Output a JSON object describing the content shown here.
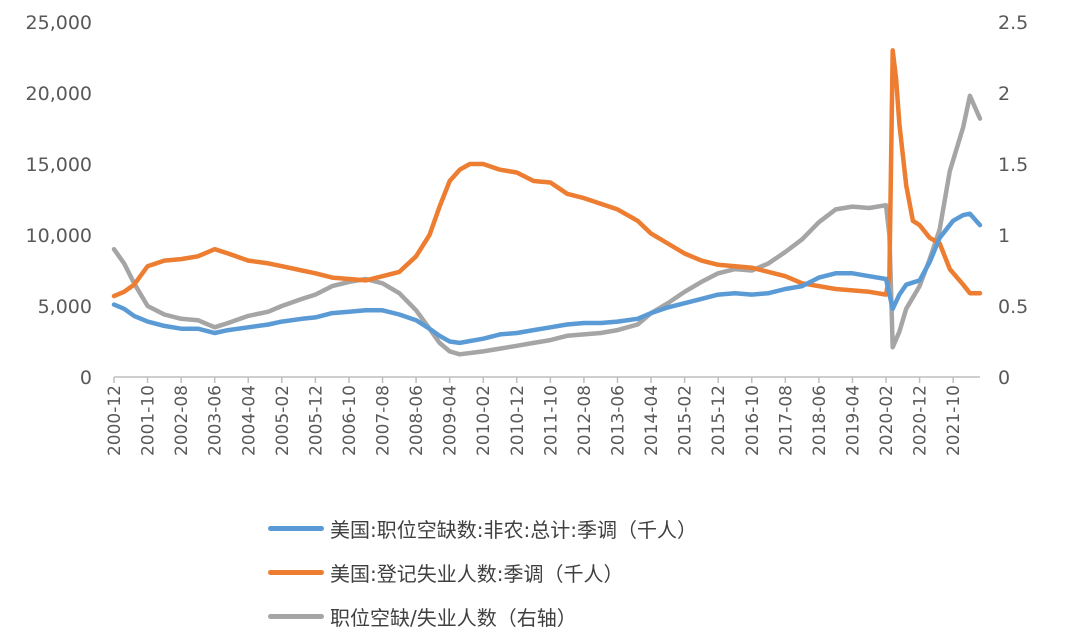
{
  "chart_data": {
    "type": "line",
    "y_left": {
      "ticks": [
        "0",
        "5,000",
        "10,000",
        "15,000",
        "20,000",
        "25,000"
      ],
      "range": [
        0,
        25000
      ]
    },
    "y_right": {
      "ticks": [
        "0",
        "0.5",
        "1",
        "1.5",
        "2",
        "2.5"
      ],
      "range": [
        0,
        2.5
      ]
    },
    "x_ticks": [
      "2000-12",
      "2001-10",
      "2002-08",
      "2003-06",
      "2004-04",
      "2005-02",
      "2005-12",
      "2006-10",
      "2007-08",
      "2008-06",
      "2009-04",
      "2010-02",
      "2010-12",
      "2011-10",
      "2012-08",
      "2013-06",
      "2014-04",
      "2015-02",
      "2015-12",
      "2016-10",
      "2017-08",
      "2018-06",
      "2019-04",
      "2020-02",
      "2020-12",
      "2021-10"
    ],
    "x_range": [
      "2000-12",
      "2022-06"
    ],
    "grid": false,
    "legend_position": "bottom",
    "series": [
      {
        "name": "美国:职位空缺数:非农:总计:季调（千人）",
        "axis": "left",
        "color": "#5B9BD5",
        "points": [
          [
            "2000-12",
            5100
          ],
          [
            "2001-03",
            4800
          ],
          [
            "2001-06",
            4300
          ],
          [
            "2001-10",
            3900
          ],
          [
            "2002-03",
            3600
          ],
          [
            "2002-08",
            3400
          ],
          [
            "2003-01",
            3400
          ],
          [
            "2003-06",
            3100
          ],
          [
            "2003-10",
            3300
          ],
          [
            "2004-04",
            3500
          ],
          [
            "2004-10",
            3700
          ],
          [
            "2005-02",
            3900
          ],
          [
            "2005-08",
            4100
          ],
          [
            "2005-12",
            4200
          ],
          [
            "2006-05",
            4500
          ],
          [
            "2006-10",
            4600
          ],
          [
            "2007-03",
            4700
          ],
          [
            "2007-08",
            4700
          ],
          [
            "2008-01",
            4400
          ],
          [
            "2008-06",
            4000
          ],
          [
            "2008-10",
            3400
          ],
          [
            "2009-01",
            2900
          ],
          [
            "2009-04",
            2500
          ],
          [
            "2009-07",
            2400
          ],
          [
            "2010-02",
            2700
          ],
          [
            "2010-07",
            3000
          ],
          [
            "2010-12",
            3100
          ],
          [
            "2011-05",
            3300
          ],
          [
            "2011-10",
            3500
          ],
          [
            "2012-03",
            3700
          ],
          [
            "2012-08",
            3800
          ],
          [
            "2013-01",
            3800
          ],
          [
            "2013-06",
            3900
          ],
          [
            "2013-12",
            4100
          ],
          [
            "2014-04",
            4500
          ],
          [
            "2014-09",
            4900
          ],
          [
            "2015-02",
            5200
          ],
          [
            "2015-07",
            5500
          ],
          [
            "2015-12",
            5800
          ],
          [
            "2016-05",
            5900
          ],
          [
            "2016-10",
            5800
          ],
          [
            "2017-03",
            5900
          ],
          [
            "2017-08",
            6200
          ],
          [
            "2018-01",
            6400
          ],
          [
            "2018-06",
            7000
          ],
          [
            "2018-11",
            7300
          ],
          [
            "2019-04",
            7300
          ],
          [
            "2019-09",
            7100
          ],
          [
            "2020-02",
            6900
          ],
          [
            "2020-04",
            4800
          ],
          [
            "2020-06",
            5800
          ],
          [
            "2020-08",
            6500
          ],
          [
            "2020-12",
            6800
          ],
          [
            "2021-03",
            8100
          ],
          [
            "2021-06",
            9800
          ],
          [
            "2021-10",
            11000
          ],
          [
            "2022-01",
            11400
          ],
          [
            "2022-03",
            11500
          ],
          [
            "2022-06",
            10700
          ]
        ]
      },
      {
        "name": "美国:登记失业人数:季调（千人）",
        "axis": "left",
        "color": "#ED7D31",
        "points": [
          [
            "2000-12",
            5700
          ],
          [
            "2001-03",
            6000
          ],
          [
            "2001-06",
            6500
          ],
          [
            "2001-10",
            7800
          ],
          [
            "2002-03",
            8200
          ],
          [
            "2002-08",
            8300
          ],
          [
            "2003-01",
            8500
          ],
          [
            "2003-06",
            9000
          ],
          [
            "2003-10",
            8700
          ],
          [
            "2004-04",
            8200
          ],
          [
            "2004-10",
            8000
          ],
          [
            "2005-02",
            7800
          ],
          [
            "2005-08",
            7500
          ],
          [
            "2005-12",
            7300
          ],
          [
            "2006-05",
            7000
          ],
          [
            "2006-10",
            6900
          ],
          [
            "2007-03",
            6800
          ],
          [
            "2007-08",
            7100
          ],
          [
            "2008-01",
            7400
          ],
          [
            "2008-06",
            8500
          ],
          [
            "2008-10",
            10000
          ],
          [
            "2009-01",
            12000
          ],
          [
            "2009-04",
            13800
          ],
          [
            "2009-07",
            14600
          ],
          [
            "2009-10",
            15000
          ],
          [
            "2010-02",
            15000
          ],
          [
            "2010-07",
            14600
          ],
          [
            "2010-12",
            14400
          ],
          [
            "2011-05",
            13800
          ],
          [
            "2011-10",
            13700
          ],
          [
            "2012-03",
            12900
          ],
          [
            "2012-08",
            12600
          ],
          [
            "2013-01",
            12200
          ],
          [
            "2013-06",
            11800
          ],
          [
            "2013-12",
            11000
          ],
          [
            "2014-04",
            10100
          ],
          [
            "2014-09",
            9400
          ],
          [
            "2015-02",
            8700
          ],
          [
            "2015-07",
            8200
          ],
          [
            "2015-12",
            7900
          ],
          [
            "2016-05",
            7800
          ],
          [
            "2016-10",
            7700
          ],
          [
            "2017-03",
            7400
          ],
          [
            "2017-08",
            7100
          ],
          [
            "2018-01",
            6600
          ],
          [
            "2018-06",
            6400
          ],
          [
            "2018-11",
            6200
          ],
          [
            "2019-04",
            6100
          ],
          [
            "2019-09",
            6000
          ],
          [
            "2020-02",
            5800
          ],
          [
            "2020-03",
            7100
          ],
          [
            "2020-04",
            23000
          ],
          [
            "2020-05",
            21000
          ],
          [
            "2020-06",
            17800
          ],
          [
            "2020-08",
            13500
          ],
          [
            "2020-10",
            11000
          ],
          [
            "2020-12",
            10700
          ],
          [
            "2021-03",
            9800
          ],
          [
            "2021-06",
            9400
          ],
          [
            "2021-09",
            7600
          ],
          [
            "2022-01",
            6500
          ],
          [
            "2022-03",
            5900
          ],
          [
            "2022-06",
            5900
          ]
        ]
      },
      {
        "name": "职位空缺/失业人数（右轴）",
        "axis": "right",
        "color": "#A5A5A5",
        "points": [
          [
            "2000-12",
            0.9
          ],
          [
            "2001-03",
            0.8
          ],
          [
            "2001-06",
            0.66
          ],
          [
            "2001-10",
            0.5
          ],
          [
            "2002-03",
            0.44
          ],
          [
            "2002-08",
            0.41
          ],
          [
            "2003-01",
            0.4
          ],
          [
            "2003-06",
            0.35
          ],
          [
            "2003-10",
            0.38
          ],
          [
            "2004-04",
            0.43
          ],
          [
            "2004-10",
            0.46
          ],
          [
            "2005-02",
            0.5
          ],
          [
            "2005-08",
            0.55
          ],
          [
            "2005-12",
            0.58
          ],
          [
            "2006-05",
            0.64
          ],
          [
            "2006-10",
            0.67
          ],
          [
            "2007-03",
            0.69
          ],
          [
            "2007-08",
            0.66
          ],
          [
            "2008-01",
            0.59
          ],
          [
            "2008-06",
            0.47
          ],
          [
            "2008-10",
            0.34
          ],
          [
            "2009-01",
            0.24
          ],
          [
            "2009-04",
            0.18
          ],
          [
            "2009-07",
            0.16
          ],
          [
            "2010-02",
            0.18
          ],
          [
            "2010-07",
            0.2
          ],
          [
            "2010-12",
            0.22
          ],
          [
            "2011-05",
            0.24
          ],
          [
            "2011-10",
            0.26
          ],
          [
            "2012-03",
            0.29
          ],
          [
            "2012-08",
            0.3
          ],
          [
            "2013-01",
            0.31
          ],
          [
            "2013-06",
            0.33
          ],
          [
            "2013-12",
            0.37
          ],
          [
            "2014-04",
            0.45
          ],
          [
            "2014-09",
            0.52
          ],
          [
            "2015-02",
            0.6
          ],
          [
            "2015-07",
            0.67
          ],
          [
            "2015-12",
            0.73
          ],
          [
            "2016-05",
            0.76
          ],
          [
            "2016-10",
            0.75
          ],
          [
            "2017-03",
            0.8
          ],
          [
            "2017-08",
            0.88
          ],
          [
            "2018-01",
            0.97
          ],
          [
            "2018-06",
            1.09
          ],
          [
            "2018-11",
            1.18
          ],
          [
            "2019-04",
            1.2
          ],
          [
            "2019-09",
            1.19
          ],
          [
            "2020-02",
            1.21
          ],
          [
            "2020-03",
            1.0
          ],
          [
            "2020-04",
            0.21
          ],
          [
            "2020-06",
            0.32
          ],
          [
            "2020-08",
            0.48
          ],
          [
            "2020-12",
            0.64
          ],
          [
            "2021-03",
            0.83
          ],
          [
            "2021-06",
            1.04
          ],
          [
            "2021-09",
            1.45
          ],
          [
            "2022-01",
            1.76
          ],
          [
            "2022-03",
            1.98
          ],
          [
            "2022-06",
            1.82
          ]
        ]
      }
    ]
  }
}
